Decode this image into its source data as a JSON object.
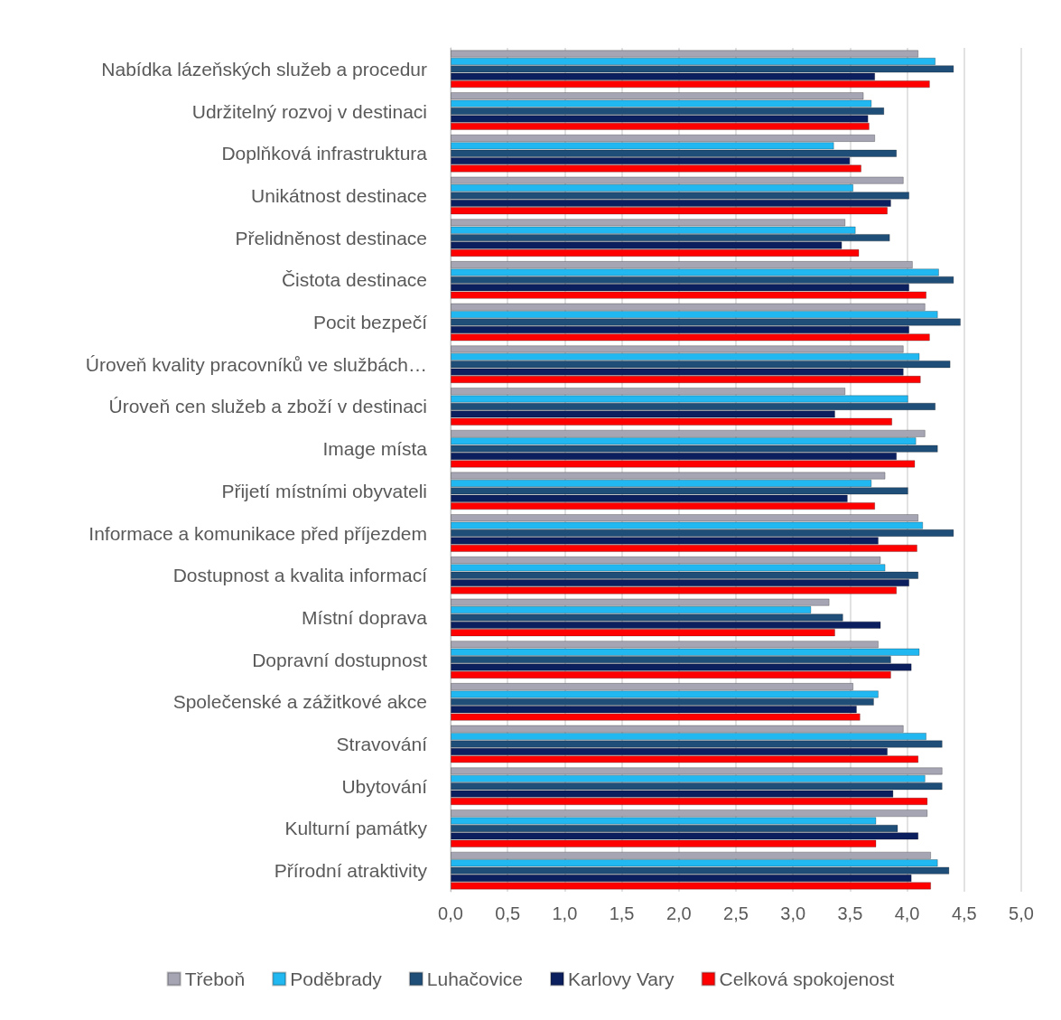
{
  "chart_data": {
    "type": "bar",
    "orientation": "horizontal",
    "categories": [
      "Nabídka lázeňských služeb a procedur",
      "Udržitelný rozvoj v destinaci",
      "Doplňková infrastruktura",
      "Unikátnost destinace",
      "Přelidněnost destinace",
      "Čistota destinace",
      "Pocit bezpečí",
      "Úroveň kvality pracovníků ve službách…",
      "Úroveň cen služeb a zboží v destinaci",
      "Image místa",
      "Přijetí místními obyvateli",
      "Informace a komunikace před příjezdem",
      "Dostupnost a kvalita informací",
      "Místní doprava",
      "Dopravní dostupnost",
      "Společenské a zážitkové akce",
      "Stravování",
      "Ubytování",
      "Kulturní památky",
      "Přírodní atraktivity"
    ],
    "series": [
      {
        "name": "Třeboň",
        "color": "#a5a5b4",
        "values": [
          4.1,
          3.62,
          3.72,
          3.97,
          3.46,
          4.05,
          4.16,
          3.97,
          3.46,
          4.16,
          3.81,
          4.1,
          3.77,
          3.32,
          3.75,
          3.53,
          3.97,
          4.31,
          4.18,
          4.21
        ]
      },
      {
        "name": "Poděbrady",
        "color": "#21b8f2",
        "values": [
          4.25,
          3.69,
          3.36,
          3.53,
          3.55,
          4.28,
          4.27,
          4.11,
          4.01,
          4.08,
          3.69,
          4.14,
          3.81,
          3.16,
          4.11,
          3.75,
          4.17,
          4.16,
          3.73,
          4.27
        ]
      },
      {
        "name": "Luhačovice",
        "color": "#1f4e79",
        "values": [
          4.41,
          3.8,
          3.91,
          4.02,
          3.85,
          4.41,
          4.47,
          4.38,
          4.25,
          4.27,
          4.01,
          4.41,
          4.1,
          3.44,
          3.86,
          3.71,
          4.31,
          4.31,
          3.92,
          4.37
        ]
      },
      {
        "name": "Karlovy Vary",
        "color": "#0b1f5e",
        "values": [
          3.72,
          3.66,
          3.5,
          3.86,
          3.43,
          4.02,
          4.02,
          3.97,
          3.37,
          3.91,
          3.48,
          3.75,
          4.02,
          3.77,
          4.04,
          3.56,
          3.83,
          3.88,
          4.1,
          4.04
        ]
      },
      {
        "name": "Celková spokojenost",
        "color": "#ff0000",
        "values": [
          4.2,
          3.67,
          3.6,
          3.83,
          3.58,
          4.17,
          4.2,
          4.12,
          3.87,
          4.07,
          3.72,
          4.09,
          3.91,
          3.37,
          3.86,
          3.59,
          4.1,
          4.18,
          3.73,
          4.21
        ]
      }
    ],
    "xlim": [
      0,
      5
    ],
    "xticks": [
      {
        "value": 0,
        "label": "0,0"
      },
      {
        "value": 0.5,
        "label": "0,5"
      },
      {
        "value": 1,
        "label": "1,0"
      },
      {
        "value": 1.5,
        "label": "1,5"
      },
      {
        "value": 2,
        "label": "2,0"
      },
      {
        "value": 2.5,
        "label": "2,5"
      },
      {
        "value": 3,
        "label": "3,0"
      },
      {
        "value": 3.5,
        "label": "3,5"
      },
      {
        "value": 4,
        "label": "4,0"
      },
      {
        "value": 4.5,
        "label": "4,5"
      },
      {
        "value": 5,
        "label": "5,0"
      }
    ],
    "grid": "x",
    "legend": "bottom"
  }
}
